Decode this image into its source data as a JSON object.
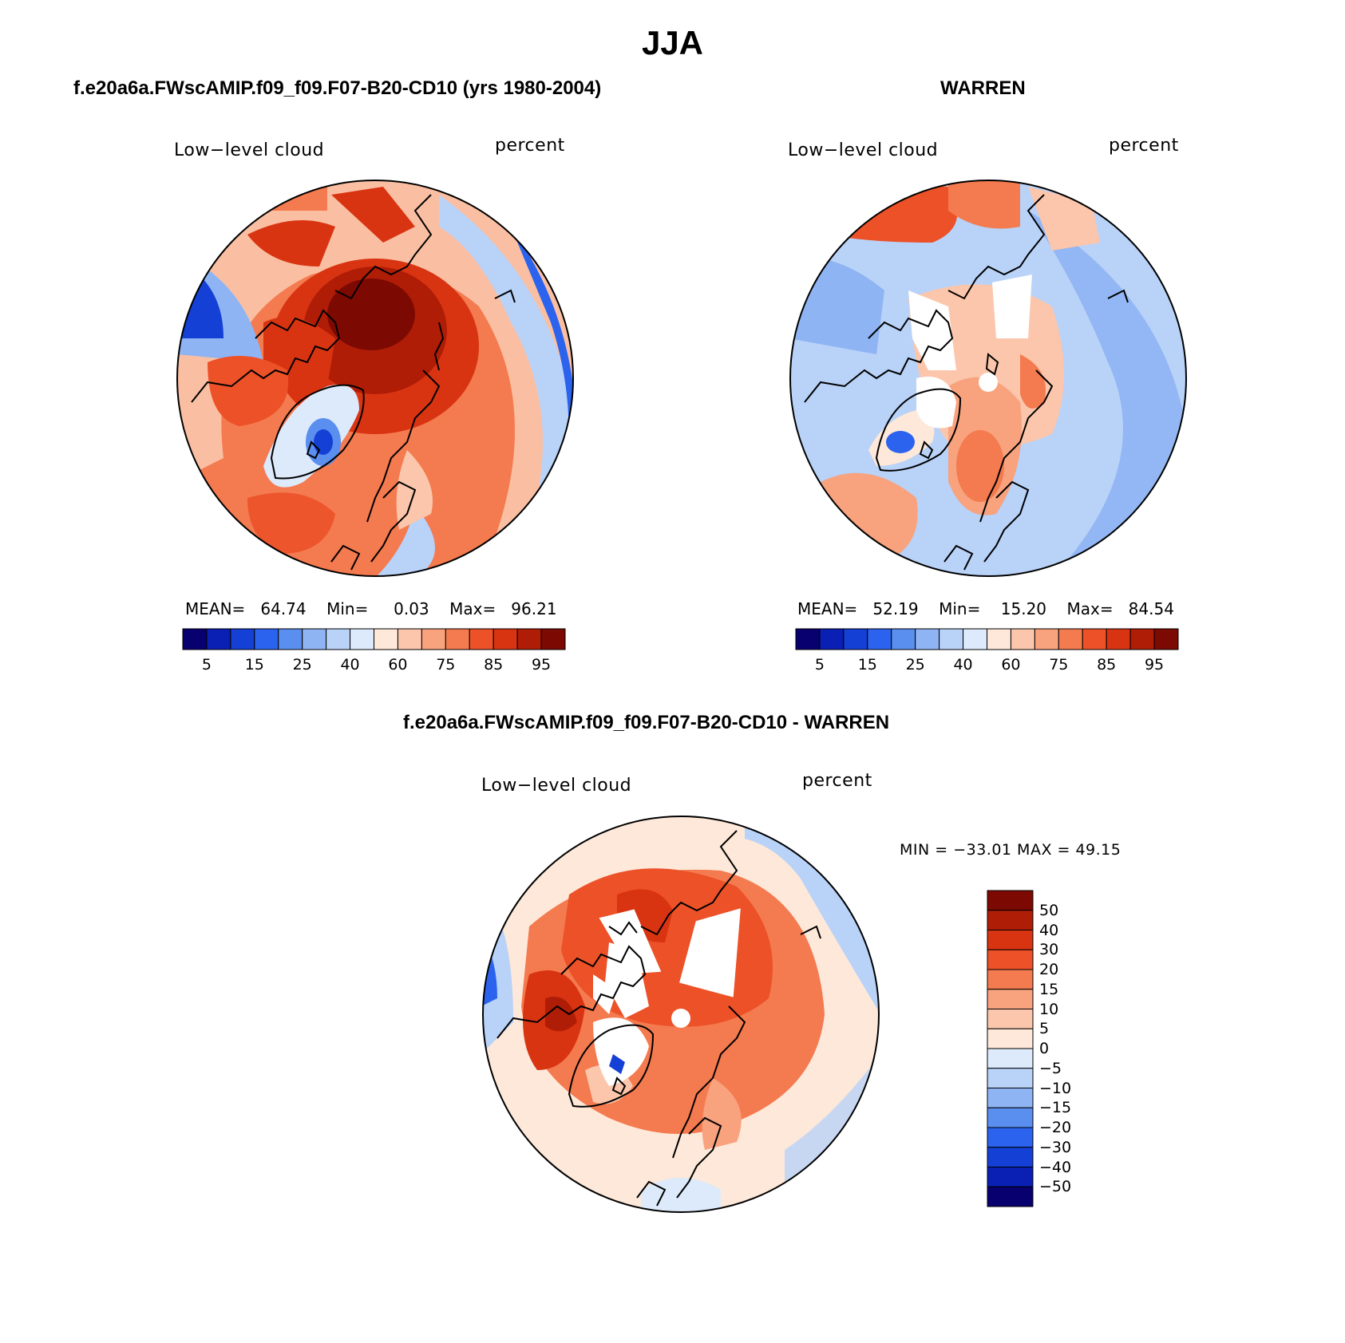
{
  "page_title": "JJA",
  "panels": [
    {
      "title": "f.e20a6a.FWscAMIP.f09_f09.F07-B20-CD10 (yrs 1980-2004)",
      "variable": "Low−level cloud",
      "units": "percent",
      "stats": {
        "mean_label": "MEAN=",
        "mean": "64.74",
        "min_label": "Min=",
        "min": "0.03",
        "max_label": "Max=",
        "max": "96.21"
      },
      "colorbar_ticks": [
        "5",
        "15",
        "25",
        "40",
        "60",
        "75",
        "85",
        "95"
      ]
    },
    {
      "title": "WARREN",
      "variable": "Low−level cloud",
      "units": "percent",
      "stats": {
        "mean_label": "MEAN=",
        "mean": "52.19",
        "min_label": "Min=",
        "min": "15.20",
        "max_label": "Max=",
        "max": "84.54"
      },
      "colorbar_ticks": [
        "5",
        "15",
        "25",
        "40",
        "60",
        "75",
        "85",
        "95"
      ]
    },
    {
      "title": "f.e20a6a.FWscAMIP.f09_f09.F07-B20-CD10 - WARREN",
      "variable": "Low−level cloud",
      "units": "percent",
      "minmax_text": "MIN = −33.01 MAX =   49.15",
      "colorbar_ticks": [
        "50",
        "40",
        "30",
        "20",
        "15",
        "10",
        "5",
        "0",
        "−5",
        "−10",
        "−15",
        "−20",
        "−30",
        "−40",
        "−50"
      ]
    }
  ],
  "colors": {
    "abs_scale": [
      "#08006e",
      "#0a1fb4",
      "#1440d6",
      "#2b63ee",
      "#5a8ff0",
      "#8fb4f3",
      "#b9d2f8",
      "#ddeafb",
      "#fde8d9",
      "#fbc6ab",
      "#f8a27e",
      "#f47a4f",
      "#ec5128",
      "#d93412",
      "#b01d06",
      "#7d0a02"
    ],
    "diff_scale": [
      "#08006e",
      "#0a1fb4",
      "#1440d6",
      "#2b63ee",
      "#5a8ff0",
      "#8fb4f3",
      "#b9d2f8",
      "#ddeafb",
      "#fde8d9",
      "#fbc6ab",
      "#f8a27e",
      "#f47a4f",
      "#ec5128",
      "#d93412",
      "#b01d06",
      "#7d0a02"
    ]
  }
}
